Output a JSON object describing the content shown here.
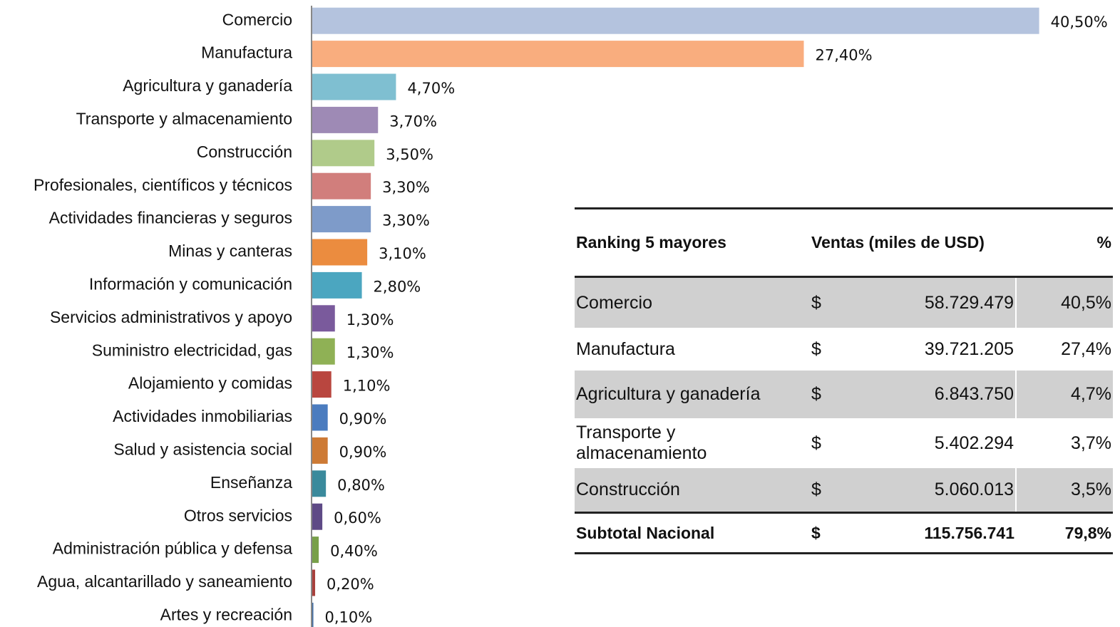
{
  "chart_data": {
    "type": "bar",
    "orientation": "horizontal",
    "categories": [
      "Comercio",
      "Manufactura",
      "Agricultura y ganadería",
      "Transporte y almacenamiento",
      "Construcción",
      "Profesionales, científicos y técnicos",
      "Actividades financieras y seguros",
      "Minas y canteras",
      "Información y comunicación",
      "Servicios administrativos y apoyo",
      "Suministro electricidad, gas",
      "Alojamiento y comidas",
      "Actividades inmobiliarias",
      "Salud y asistencia social",
      "Enseñanza",
      "Otros servicios",
      "Administración pública y defensa",
      "Agua, alcantarillado y saneamiento",
      "Artes y recreación"
    ],
    "values": [
      40.5,
      27.4,
      4.7,
      3.7,
      3.5,
      3.3,
      3.3,
      3.1,
      2.8,
      1.3,
      1.3,
      1.1,
      0.9,
      0.9,
      0.8,
      0.6,
      0.4,
      0.2,
      0.1
    ],
    "value_labels": [
      "40,50%",
      "27,40%",
      "4,70%",
      "3,70%",
      "3,50%",
      "3,30%",
      "3,30%",
      "3,10%",
      "2,80%",
      "1,30%",
      "1,30%",
      "1,10%",
      "0,90%",
      "0,90%",
      "0,80%",
      "0,60%",
      "0,40%",
      "0,20%",
      "0,10%"
    ],
    "colors": [
      "#b4c3de",
      "#f9ad7e",
      "#7fbfd1",
      "#9e8ab5",
      "#b0cb8a",
      "#d17e7c",
      "#7e9bc9",
      "#eb8c3f",
      "#4ba6c0",
      "#7a5a9c",
      "#8fb155",
      "#b9463f",
      "#4b7cbf",
      "#cd7a35",
      "#3a8a9c",
      "#5e4a86",
      "#78a04a",
      "#a8403c",
      "#3d6aa5"
    ],
    "xlim": [
      0,
      45
    ]
  },
  "table": {
    "header": [
      "Ranking  5 mayores",
      "Ventas  (miles de USD)",
      "%"
    ],
    "rows": [
      [
        "Comercio",
        "$",
        "58.729.479",
        "40,5%"
      ],
      [
        "Manufactura",
        "$",
        "39.721.205",
        "27,4%"
      ],
      [
        "Agricultura y ganadería",
        "$",
        "6.843.750",
        "4,7%"
      ],
      [
        "Transporte y almacenamiento",
        "$",
        "5.402.294",
        "3,7%"
      ],
      [
        "Construcción",
        "$",
        "5.060.013",
        "3,5%"
      ]
    ],
    "subtotal": [
      "Subtotal Nacional",
      "$",
      "115.756.741",
      "79,8%"
    ]
  }
}
